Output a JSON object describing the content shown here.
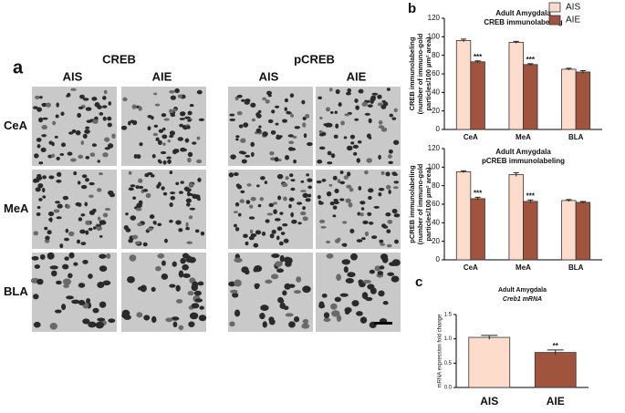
{
  "panel_a": {
    "letter": "a",
    "groups": [
      {
        "title": "CREB",
        "columns": [
          "AIS",
          "AIE"
        ]
      },
      {
        "title": "pCREB",
        "columns": [
          "AIS",
          "AIE"
        ]
      }
    ],
    "rows": [
      "CeA",
      "MeA",
      "BLA"
    ]
  },
  "panel_letters": {
    "b": "b",
    "c": "c"
  },
  "chart_data": [
    {
      "type": "bar",
      "title": "Adult Amygdala",
      "subtitle": "CREB immunolabeling",
      "ylabel": [
        "CREB immunolabeling",
        "(number of immuno-gold",
        "particles/100 µm² area)"
      ],
      "categories": [
        "CeA",
        "MeA",
        "BLA"
      ],
      "series": [
        {
          "name": "AIS",
          "color": "#fddccb",
          "values": [
            96,
            94,
            65
          ],
          "errors": [
            1.5,
            1,
            1
          ]
        },
        {
          "name": "AIE",
          "color": "#a0533d",
          "values": [
            73,
            70,
            62
          ],
          "errors": [
            1,
            1,
            1.5
          ]
        }
      ],
      "annotations": [
        {
          "text": "***",
          "category": "CeA",
          "series": "AIE"
        },
        {
          "text": "***",
          "category": "MeA",
          "series": "AIE"
        }
      ],
      "ylim": [
        0,
        120
      ],
      "yticks": [
        0,
        20,
        40,
        60,
        80,
        100,
        120
      ],
      "legend": "top-right"
    },
    {
      "type": "bar",
      "title": "Adult Amygdala",
      "subtitle": "pCREB immunolabeling",
      "ylabel": [
        "pCREB immunolabeling",
        "(number of immuno-gold",
        "particles/100 µm² area)"
      ],
      "categories": [
        "CeA",
        "MeA",
        "BLA"
      ],
      "series": [
        {
          "name": "AIS",
          "color": "#fddccb",
          "values": [
            95,
            92,
            64
          ],
          "errors": [
            1,
            2,
            1
          ]
        },
        {
          "name": "AIE",
          "color": "#a0533d",
          "values": [
            66,
            63,
            62
          ],
          "errors": [
            1.5,
            1.5,
            1
          ]
        }
      ],
      "annotations": [
        {
          "text": "***",
          "category": "CeA",
          "series": "AIE"
        },
        {
          "text": "***",
          "category": "MeA",
          "series": "AIE"
        }
      ],
      "ylim": [
        0,
        120
      ],
      "yticks": [
        0,
        20,
        40,
        60,
        80,
        100,
        120
      ]
    },
    {
      "type": "bar",
      "title": "Adult Amygdala",
      "subtitle": "Creb1 mRNA",
      "ylabel": [
        "mRNA expression fold change"
      ],
      "categories": [
        "AIS",
        "AIE"
      ],
      "values": [
        1.03,
        0.72
      ],
      "errors": [
        0.04,
        0.05
      ],
      "colors": [
        "#fddccb",
        "#a0533d"
      ],
      "annotations": [
        {
          "text": "**",
          "category": "AIE"
        }
      ],
      "ylim": [
        0,
        1.5
      ],
      "yticks": [
        {
          "value": 0,
          "label": "0.0"
        },
        0.5,
        {
          "value": 1,
          "label": "1.0"
        },
        1.5
      ]
    }
  ]
}
